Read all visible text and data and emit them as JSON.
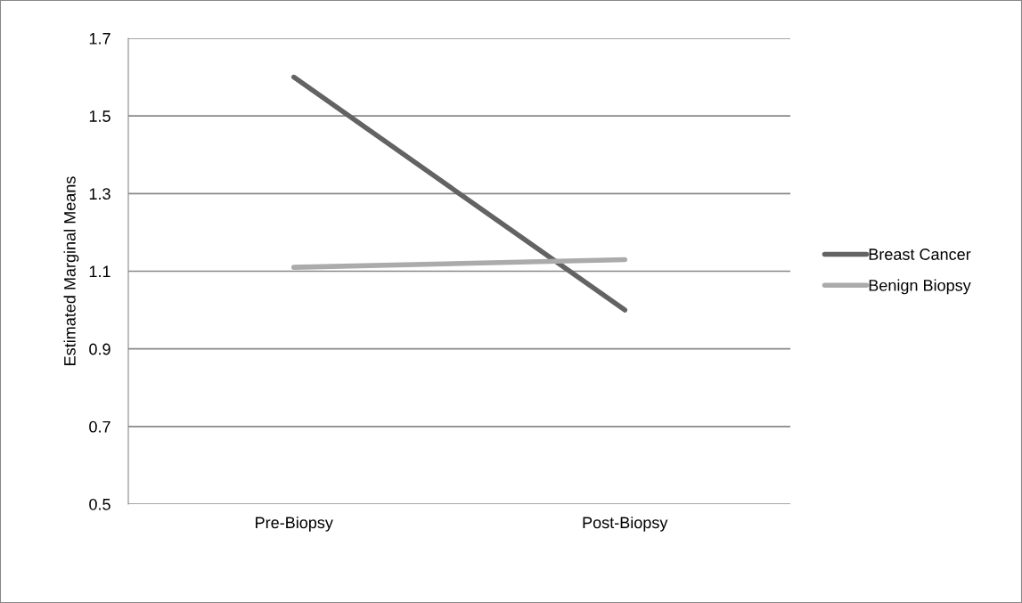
{
  "chart_data": {
    "type": "line",
    "ylabel": "Estimated Marginal Means",
    "categories": [
      "Pre-Biopsy",
      "Post-Biopsy"
    ],
    "series": [
      {
        "name": "Breast Cancer",
        "color": "#636363",
        "values": [
          1.6,
          1.0
        ]
      },
      {
        "name": "Benign Biopsy",
        "color": "#ababab",
        "values": [
          1.11,
          1.13
        ]
      }
    ],
    "ylim": [
      0.5,
      1.7
    ],
    "yticks": [
      0.5,
      0.7,
      0.9,
      1.1,
      1.3,
      1.5,
      1.7
    ],
    "grid": "y",
    "legend": "right",
    "marker": "none",
    "line_style": "solid"
  }
}
